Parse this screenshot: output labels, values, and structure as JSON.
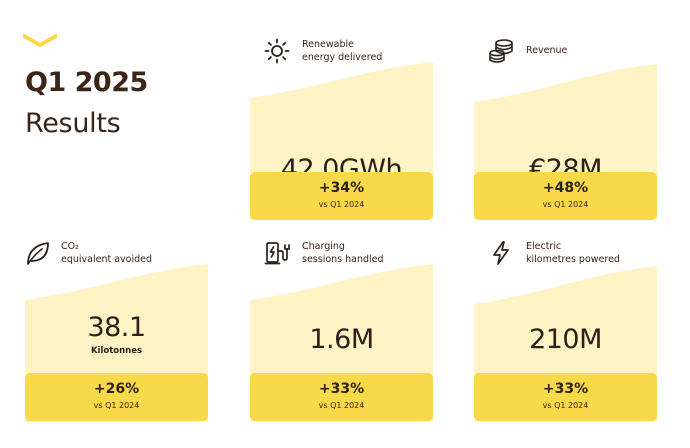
{
  "header": {
    "year_title": "Q1 2025",
    "subtitle": "Results"
  },
  "colors": {
    "accent_yellow": "#f8d94a",
    "panel_cream": "#fdf3c4",
    "text_brown": "#3b2418"
  },
  "metrics": [
    {
      "icon": "sun-icon",
      "label_line1": "Renewable",
      "label_line2": "energy delivered",
      "value": "42.0GWh",
      "unit": "",
      "change": "+34%",
      "comparison": "vs Q1 2024"
    },
    {
      "icon": "coins-icon",
      "label_line1": "Revenue",
      "label_line2": "",
      "value": "€28M",
      "unit": "",
      "change": "+48%",
      "comparison": "vs Q1 2024"
    },
    {
      "icon": "leaf-icon",
      "label_line1": "CO₂",
      "label_line2": "equivalent avoided",
      "value": "38.1",
      "unit": "Kilotonnes",
      "change": "+26%",
      "comparison": "vs Q1 2024"
    },
    {
      "icon": "ev-charger-icon",
      "label_line1": "Charging",
      "label_line2": "sessions handled",
      "value": "1.6M",
      "unit": "",
      "change": "+33%",
      "comparison": "vs Q1 2024"
    },
    {
      "icon": "lightning-icon",
      "label_line1": "Electric",
      "label_line2": "kilometres powered",
      "value": "210M",
      "unit": "",
      "change": "+33%",
      "comparison": "vs Q1 2024"
    }
  ]
}
